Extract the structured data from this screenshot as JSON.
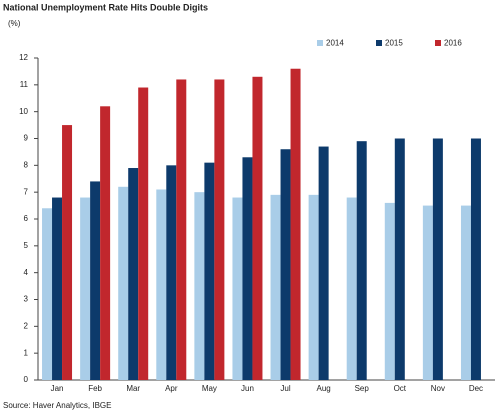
{
  "chart_data": {
    "type": "bar",
    "title": "National Unemployment Rate Hits Double Digits",
    "ylabel": "(%)",
    "source": "Source: Haver Analytics, IBGE",
    "categories": [
      "Jan",
      "Feb",
      "Mar",
      "Apr",
      "May",
      "Jun",
      "Jul",
      "Aug",
      "Sep",
      "Oct",
      "Nov",
      "Dec"
    ],
    "series": [
      {
        "name": "2014",
        "color": "#a9cde8",
        "values": [
          6.4,
          6.8,
          7.2,
          7.1,
          7.0,
          6.8,
          6.9,
          6.9,
          6.8,
          6.6,
          6.5,
          6.5
        ]
      },
      {
        "name": "2015",
        "color": "#0d3a6b",
        "values": [
          6.8,
          7.4,
          7.9,
          8.0,
          8.1,
          8.3,
          8.6,
          8.7,
          8.9,
          9.0,
          9.0,
          9.0
        ]
      },
      {
        "name": "2016",
        "color": "#c1272d",
        "values": [
          9.5,
          10.2,
          10.9,
          11.2,
          11.2,
          11.3,
          11.6,
          null,
          null,
          null,
          null,
          null
        ]
      }
    ],
    "ylim": [
      0,
      12
    ],
    "yticks": [
      0,
      1,
      2,
      3,
      4,
      5,
      6,
      7,
      8,
      9,
      10,
      11,
      12
    ],
    "grid": false,
    "legend": "top-right"
  }
}
